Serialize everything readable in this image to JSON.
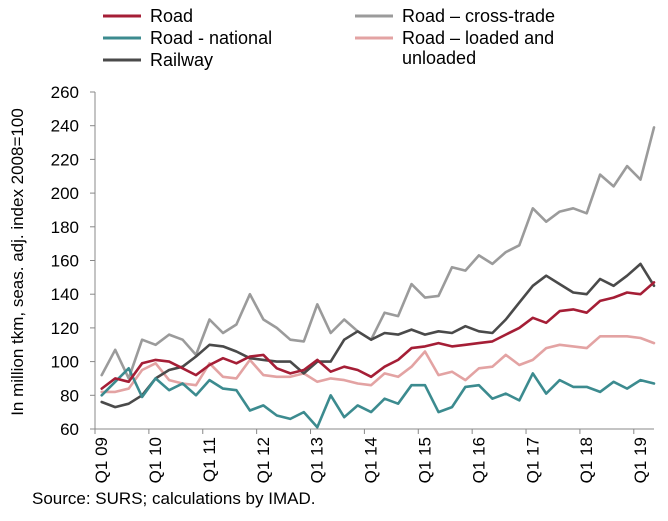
{
  "chart_data": {
    "type": "line",
    "ylabel": "In million tkm, seas. adj. index 2008=100",
    "ylim": [
      60,
      260
    ],
    "yticks": [
      60,
      80,
      100,
      120,
      140,
      160,
      180,
      200,
      220,
      240,
      260
    ],
    "x_tick_labels": [
      "Q1 09",
      "Q1 10",
      "Q1 11",
      "Q1 12",
      "Q1 13",
      "Q1 14",
      "Q1 15",
      "Q1 16",
      "Q1 17",
      "Q1 18",
      "Q1 19"
    ],
    "x_tick_index": [
      0,
      4,
      8,
      12,
      16,
      20,
      24,
      28,
      32,
      36,
      40
    ],
    "grid": false,
    "legend": "top",
    "series": [
      {
        "name": "Road",
        "color": "#A51E36",
        "values": [
          84,
          90,
          88,
          99,
          101,
          100,
          96,
          92,
          98,
          102,
          99,
          103,
          104,
          96,
          93,
          95,
          101,
          94,
          97,
          95,
          91,
          97,
          101,
          108,
          109,
          111,
          109,
          110,
          111,
          112,
          116,
          120,
          126,
          123,
          130,
          131,
          129,
          136,
          138,
          141,
          140,
          147
        ]
      },
      {
        "name": "Road - national",
        "color": "#3C8B8F",
        "values": [
          80,
          88,
          96,
          79,
          90,
          83,
          87,
          80,
          89,
          84,
          83,
          71,
          74,
          68,
          66,
          70,
          61,
          80,
          67,
          74,
          70,
          78,
          75,
          86,
          86,
          70,
          73,
          85,
          86,
          78,
          81,
          77,
          93,
          81,
          89,
          85,
          85,
          82,
          88,
          84,
          89,
          87
        ]
      },
      {
        "name": "Railway",
        "color": "#4A4A4A",
        "values": [
          76,
          73,
          75,
          80,
          90,
          95,
          97,
          103,
          110,
          109,
          106,
          102,
          101,
          100,
          100,
          93,
          100,
          100,
          113,
          118,
          113,
          117,
          116,
          119,
          116,
          118,
          117,
          121,
          118,
          117,
          125,
          135,
          145,
          151,
          146,
          141,
          140,
          149,
          145,
          151,
          158,
          145
        ]
      },
      {
        "name": "Road – cross-trade",
        "color": "#9B9B9B",
        "values": [
          92,
          107,
          90,
          113,
          110,
          116,
          113,
          104,
          125,
          117,
          122,
          140,
          125,
          120,
          113,
          112,
          134,
          117,
          125,
          118,
          113,
          129,
          127,
          146,
          138,
          139,
          156,
          154,
          163,
          158,
          165,
          169,
          191,
          183,
          189,
          191,
          188,
          211,
          204,
          216,
          208,
          239
        ]
      },
      {
        "name": "Road – loaded and unloaded",
        "color": "#E3A3A3",
        "values": [
          82,
          82,
          84,
          95,
          99,
          89,
          87,
          86,
          99,
          91,
          90,
          101,
          92,
          91,
          91,
          93,
          88,
          90,
          89,
          87,
          86,
          93,
          91,
          97,
          106,
          92,
          94,
          89,
          96,
          97,
          104,
          98,
          101,
          108,
          110,
          109,
          108,
          115,
          115,
          115,
          114,
          111
        ]
      }
    ],
    "legend_lines": [
      {
        "series": 0,
        "lines": [
          "Road"
        ]
      },
      {
        "series": 1,
        "lines": [
          "Road - national"
        ]
      },
      {
        "series": 2,
        "lines": [
          "Railway"
        ]
      },
      {
        "series": 3,
        "lines": [
          "Road – cross-trade"
        ]
      },
      {
        "series": 4,
        "lines": [
          "Road – loaded and",
          "unloaded"
        ]
      }
    ]
  },
  "source": "Source: SURS; calculations by IMAD."
}
